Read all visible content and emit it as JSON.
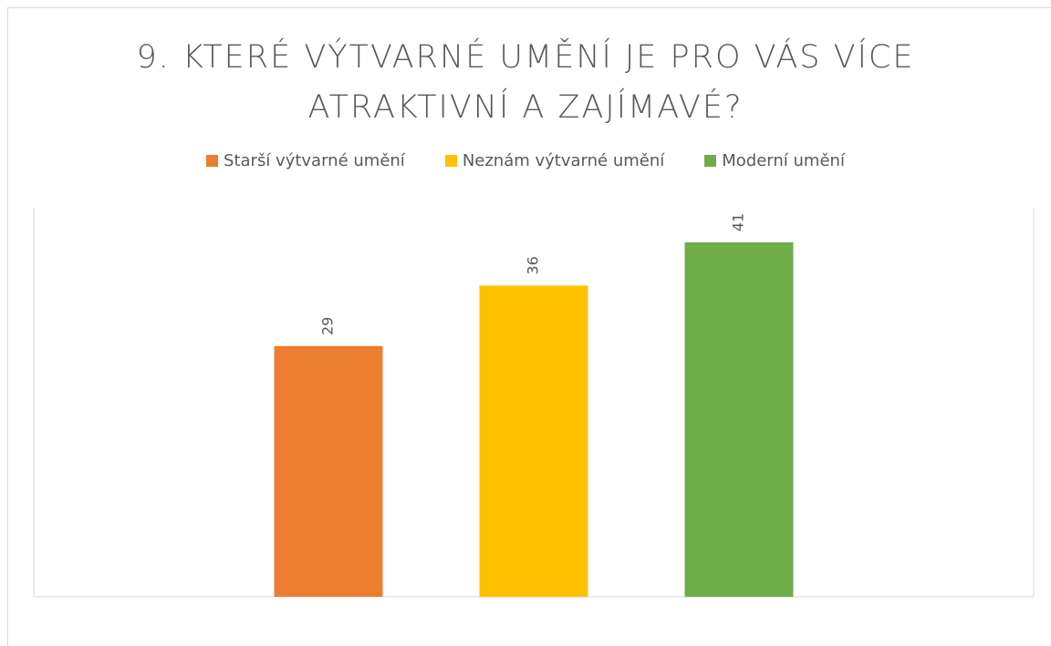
{
  "chart_data": {
    "type": "bar",
    "title": "9. KTERÉ VÝTVARNÉ UMĚNÍ JE PRO VÁS VÍCE ATRAKTIVNÍ A ZAJÍMAVÉ?",
    "categories": [
      null
    ],
    "series": [
      {
        "name": "Starší výtvarné umění",
        "color": "#ed7d31",
        "values": [
          29
        ]
      },
      {
        "name": "Neznám výtvarné umění",
        "color": "#ffc000",
        "values": [
          36
        ]
      },
      {
        "name": "Moderní umění",
        "color": "#70ad47",
        "values": [
          41
        ]
      }
    ],
    "ylim": [
      0,
      45
    ],
    "legend": "top"
  }
}
